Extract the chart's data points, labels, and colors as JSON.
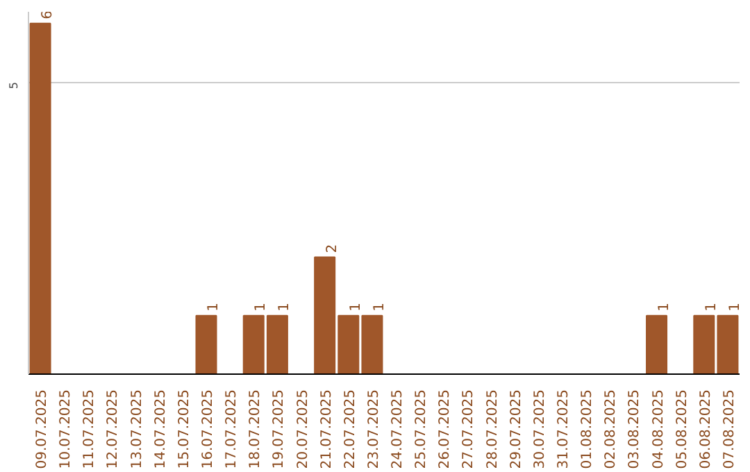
{
  "chart_data": {
    "type": "bar",
    "categories": [
      "09.07.2025",
      "10.07.2025",
      "11.07.2025",
      "12.07.2025",
      "13.07.2025",
      "14.07.2025",
      "15.07.2025",
      "16.07.2025",
      "17.07.2025",
      "18.07.2025",
      "19.07.2025",
      "20.07.2025",
      "21.07.2025",
      "22.07.2025",
      "23.07.2025",
      "24.07.2025",
      "25.07.2025",
      "26.07.2025",
      "27.07.2025",
      "28.07.2025",
      "29.07.2025",
      "30.07.2025",
      "31.07.2025",
      "01.08.2025",
      "02.08.2025",
      "03.08.2025",
      "04.08.2025",
      "05.08.2025",
      "06.08.2025",
      "07.08.2025"
    ],
    "values": [
      6,
      0,
      0,
      0,
      0,
      0,
      0,
      1,
      0,
      1,
      1,
      0,
      2,
      1,
      1,
      0,
      0,
      0,
      0,
      0,
      0,
      0,
      0,
      0,
      0,
      0,
      1,
      0,
      1,
      1
    ],
    "value_labels": [
      "6",
      null,
      null,
      null,
      null,
      null,
      null,
      "1",
      null,
      "1",
      "1",
      null,
      "2",
      "1",
      "1",
      null,
      null,
      null,
      null,
      null,
      null,
      null,
      null,
      null,
      null,
      null,
      "1",
      null,
      "1",
      "1"
    ],
    "color": "#a0572a",
    "ylim": [
      0,
      6.2
    ],
    "yticks": [
      5
    ],
    "grid": "y"
  }
}
